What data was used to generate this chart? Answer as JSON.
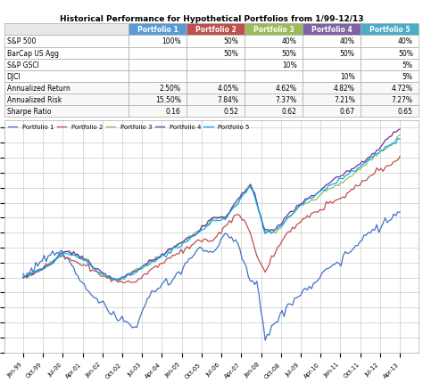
{
  "title": "Historical Performance for Hypothetical Portfolios from 1/99-12/13",
  "table_headers": [
    "",
    "Portfolio 1",
    "Portfolio 2",
    "Portfolio 3",
    "Portfolio 4",
    "Portfolio 5"
  ],
  "table_rows": [
    [
      "S&P 500",
      "100%",
      "50%",
      "40%",
      "40%",
      "40%"
    ],
    [
      "BarCap US Agg",
      "",
      "50%",
      "50%",
      "50%",
      "50%"
    ],
    [
      "S&P GSCI",
      "",
      "",
      "10%",
      "",
      "5%"
    ],
    [
      "DJCI",
      "",
      "",
      "",
      "10%",
      "5%"
    ],
    [
      "Annualized Return",
      "2.50%",
      "4.05%",
      "4.62%",
      "4.82%",
      "4.72%"
    ],
    [
      "Annualized Risk",
      "15.50%",
      "7.84%",
      "7.37%",
      "7.21%",
      "7.27%"
    ],
    [
      "Sharpe Ratio",
      "0.16",
      "0.52",
      "0.62",
      "0.67",
      "0.65"
    ]
  ],
  "header_colors": [
    "#5b9bd5",
    "#c0504d",
    "#9bbb59",
    "#8064a2",
    "#4bacc6"
  ],
  "header_text_color": "#ffffff",
  "separator_row": 4,
  "portfolio_colors": [
    "#4472c4",
    "#c0504d",
    "#9bbb59",
    "#7030a0",
    "#00b0f0"
  ],
  "portfolio_names": [
    "Portfolio 1",
    "Portfolio 2",
    "Portfolio 3",
    "Portfolio 4",
    "Portfolio 5"
  ],
  "ylim": [
    50,
    205
  ],
  "yticks": [
    50,
    60,
    70,
    80,
    90,
    100,
    110,
    120,
    130,
    140,
    150,
    160,
    170,
    180,
    190,
    200
  ],
  "x_labels": [
    "Jan-99",
    "Oct-99",
    "Jul-00",
    "Apr-01",
    "Jan-02",
    "Oct-02",
    "Jul-03",
    "Apr-04",
    "Jan-05",
    "Oct-05",
    "Jul-06",
    "Apr-07",
    "Jan-08",
    "Oct-08",
    "Jul-09",
    "Apr-10",
    "Jan-11",
    "Oct-11",
    "Jul-12",
    "Apr-13"
  ],
  "background_color": "#ffffff",
  "grid_color": "#c0c0c0"
}
